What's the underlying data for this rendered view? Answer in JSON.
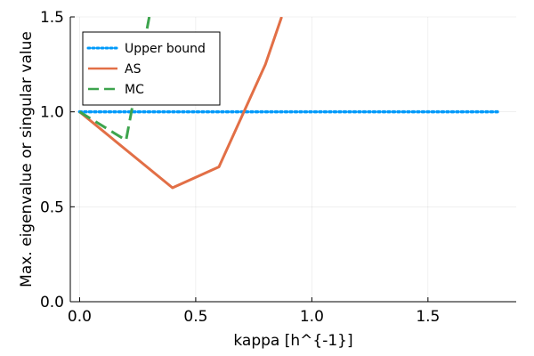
{
  "chart_data": {
    "type": "line",
    "xlabel": "kappa [h^{-1}]",
    "ylabel": "Max. eigenvalue or singular value",
    "xlim": [
      -0.04,
      1.88
    ],
    "ylim": [
      0.0,
      1.5
    ],
    "xticks": [
      0.0,
      0.5,
      1.0,
      1.5
    ],
    "xtick_labels": [
      "0.0",
      "0.5",
      "1.0",
      "1.5"
    ],
    "yticks": [
      0.0,
      0.5,
      1.0,
      1.5
    ],
    "ytick_labels": [
      "0.0",
      "0.5",
      "1.0",
      "1.5"
    ],
    "grid": true,
    "legend_position": "top-left",
    "series": [
      {
        "name": "Upper bound",
        "style": "dotted",
        "color": "#009AFA",
        "x": [
          0.0,
          1.8
        ],
        "y": [
          1.0,
          1.0
        ]
      },
      {
        "name": "AS",
        "style": "solid",
        "color": "#E26F46",
        "x": [
          0.0,
          0.4,
          0.6,
          0.8,
          0.87
        ],
        "y": [
          1.0,
          0.6,
          0.71,
          1.25,
          1.5
        ]
      },
      {
        "name": "MC",
        "style": "dashed",
        "color": "#3DA44D",
        "x": [
          0.0,
          0.2,
          0.3
        ],
        "y": [
          1.0,
          0.85,
          1.5
        ]
      }
    ]
  }
}
